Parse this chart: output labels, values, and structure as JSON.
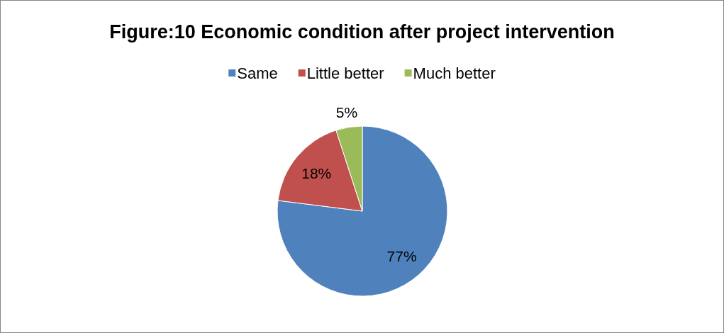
{
  "chart_data": {
    "type": "pie",
    "title": "Figure:10 Economic condition after project intervention",
    "categories": [
      "Same",
      "Little better",
      "Much better"
    ],
    "values": [
      77,
      18,
      5
    ],
    "colors": [
      "#4f81bd",
      "#c0504d",
      "#9bbb59"
    ],
    "value_labels": [
      "77%",
      "18%",
      "5%"
    ],
    "legend": "top"
  }
}
